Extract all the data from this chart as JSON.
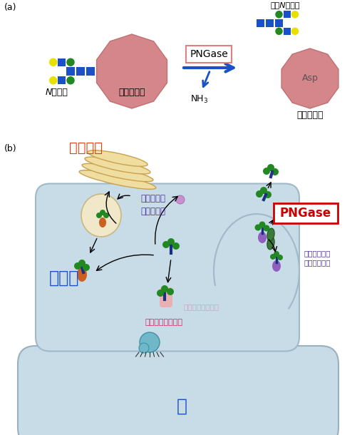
{
  "bg_color": "#ffffff",
  "panel_a_label": "(a)",
  "panel_b_label": "(b)",
  "protein_color": "#d4868a",
  "protein_ec": "#c07070",
  "blue_color": "#1a50c8",
  "green_color": "#228822",
  "yellow_color": "#e8e000",
  "pngase_box_ec": "#e08080",
  "arrow_blue": "#1a50c8",
  "asp_text": "Asp",
  "n_glycan_label": "N型糖鎖",
  "protein_label": "タンパク質",
  "free_glycan_label": "遠離N型糖鎖",
  "gorji_label": "ゴルジ体",
  "er_label": "小胞体",
  "nucleus_label": "核",
  "cytoplasm_text": "細胞質にて\n分解・除去",
  "bad_glycoprotein": "出来損ないの\n糖タンパク質",
  "new_glycoprotein": "新生糖タンパク質",
  "er_fill": "#c8dce8",
  "er_outline": "#a0b8c8",
  "gorji_fill": "#f0dea0",
  "gorji_ec": "#c8a050",
  "nucleus_fill": "#c8dce8",
  "nucleus_outline": "#9ab0be",
  "oval_fill": "#f0e8c8",
  "oval_ec": "#c8b880"
}
